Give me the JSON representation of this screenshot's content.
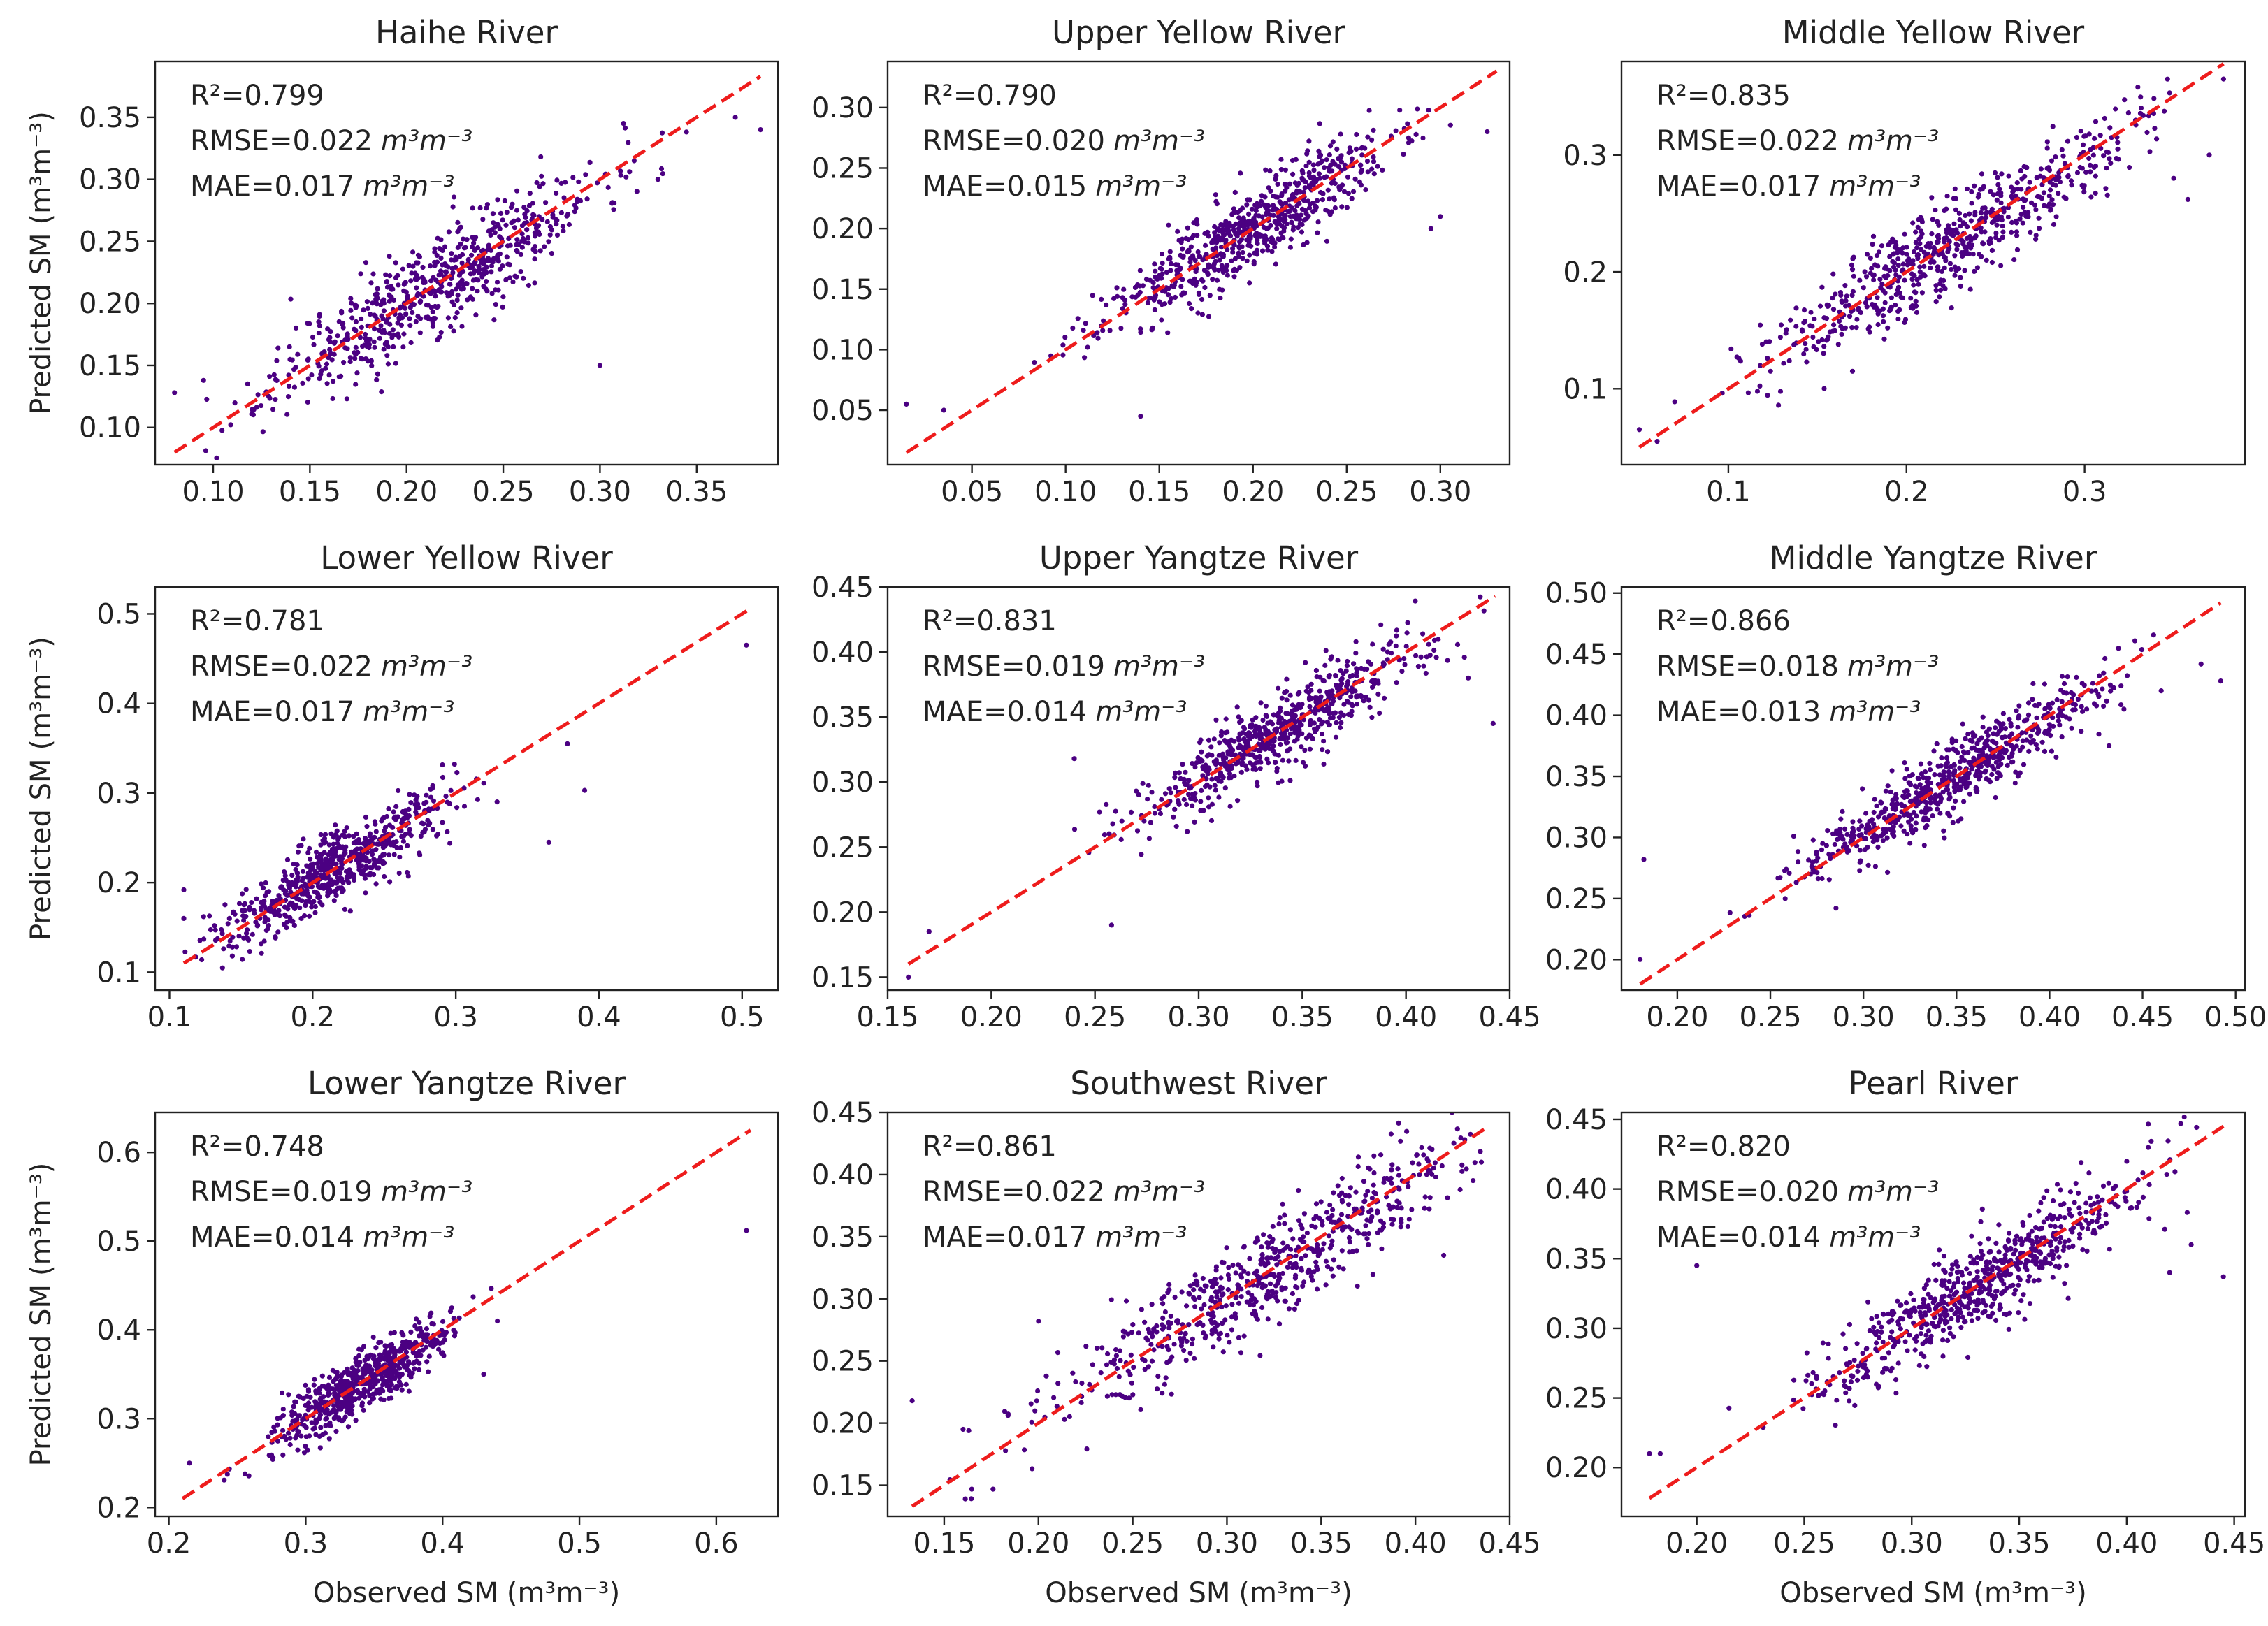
{
  "figure": {
    "ylabel": "Predicted SM",
    "xlabel": "Observed SM",
    "unit": "(m³m⁻³)",
    "stat_unit": "m³m⁻³"
  },
  "colors": {
    "points": "#4b0082",
    "line": "#ee1c1c",
    "frame": "#222222"
  },
  "chart_data": [
    {
      "type": "scatter",
      "title": "Haihe River",
      "r2": "R²=0.799",
      "rmse": "RMSE=0.022",
      "mae": "MAE=0.017",
      "xlim": [
        0.07,
        0.392
      ],
      "ylim": [
        0.07,
        0.395
      ],
      "xticks": [
        0.1,
        0.15,
        0.2,
        0.25,
        0.3,
        0.35
      ],
      "xtick_labels": [
        "0.10",
        "0.15",
        "0.20",
        "0.25",
        "0.30",
        "0.35"
      ],
      "yticks": [
        0.1,
        0.15,
        0.2,
        0.25,
        0.3,
        0.35
      ],
      "ytick_labels": [
        "0.10",
        "0.15",
        "0.20",
        "0.25",
        "0.30",
        "0.35"
      ],
      "line": [
        0.08,
        0.383
      ],
      "cluster": {
        "center": 0.215,
        "spread": 0.042,
        "scatter": 0.02,
        "n": 650,
        "seed": 11
      },
      "outliers": [
        [
          0.08,
          0.128
        ],
        [
          0.095,
          0.138
        ],
        [
          0.383,
          0.34
        ],
        [
          0.37,
          0.35
        ],
        [
          0.3,
          0.15
        ],
        [
          0.33,
          0.3
        ]
      ]
    },
    {
      "type": "scatter",
      "title": "Upper Yellow River",
      "r2": "R²=0.790",
      "rmse": "RMSE=0.020",
      "mae": "MAE=0.015",
      "xlim": [
        0.005,
        0.337
      ],
      "ylim": [
        0.005,
        0.338
      ],
      "xticks": [
        0.05,
        0.1,
        0.15,
        0.2,
        0.25,
        0.3
      ],
      "xtick_labels": [
        "0.05",
        "0.10",
        "0.15",
        "0.20",
        "0.25",
        "0.30"
      ],
      "yticks": [
        0.05,
        0.1,
        0.15,
        0.2,
        0.25,
        0.3
      ],
      "ytick_labels": [
        "0.05",
        "0.10",
        "0.15",
        "0.20",
        "0.25",
        "0.30"
      ],
      "line": [
        0.015,
        0.33
      ],
      "cluster": {
        "center": 0.195,
        "spread": 0.038,
        "scatter": 0.017,
        "n": 650,
        "seed": 23
      },
      "outliers": [
        [
          0.015,
          0.055
        ],
        [
          0.035,
          0.05
        ],
        [
          0.325,
          0.28
        ],
        [
          0.3,
          0.21
        ],
        [
          0.295,
          0.2
        ],
        [
          0.14,
          0.045
        ],
        [
          0.16,
          0.17
        ]
      ]
    },
    {
      "type": "scatter",
      "title": "Middle Yellow River",
      "r2": "R²=0.835",
      "rmse": "RMSE=0.022",
      "mae": "MAE=0.017",
      "xlim": [
        0.04,
        0.39
      ],
      "ylim": [
        0.035,
        0.38
      ],
      "xticks": [
        0.1,
        0.2,
        0.3
      ],
      "xtick_labels": [
        "0.1",
        "0.2",
        "0.3"
      ],
      "yticks": [
        0.1,
        0.2,
        0.3
      ],
      "ytick_labels": [
        "0.1",
        "0.2",
        "0.3"
      ],
      "line": [
        0.05,
        0.378
      ],
      "cluster": {
        "center": 0.225,
        "spread": 0.05,
        "scatter": 0.02,
        "n": 650,
        "seed": 37
      },
      "outliers": [
        [
          0.05,
          0.065
        ],
        [
          0.06,
          0.055
        ],
        [
          0.378,
          0.365
        ],
        [
          0.37,
          0.3
        ],
        [
          0.358,
          0.262
        ],
        [
          0.35,
          0.28
        ]
      ]
    },
    {
      "type": "scatter",
      "title": "Lower Yellow River",
      "r2": "R²=0.781",
      "rmse": "RMSE=0.022",
      "mae": "MAE=0.017",
      "xlim": [
        0.09,
        0.525
      ],
      "ylim": [
        0.08,
        0.53
      ],
      "xticks": [
        0.1,
        0.2,
        0.3,
        0.4,
        0.5
      ],
      "xtick_labels": [
        "0.1",
        "0.2",
        "0.3",
        "0.4",
        "0.5"
      ],
      "yticks": [
        0.1,
        0.2,
        0.3,
        0.4,
        0.5
      ],
      "ytick_labels": [
        "0.1",
        "0.2",
        "0.3",
        "0.4",
        "0.5"
      ],
      "line": [
        0.11,
        0.505
      ],
      "cluster": {
        "center": 0.215,
        "spread": 0.04,
        "scatter": 0.02,
        "n": 650,
        "seed": 41
      },
      "outliers": [
        [
          0.11,
          0.192
        ],
        [
          0.503,
          0.465
        ],
        [
          0.39,
          0.303
        ],
        [
          0.365,
          0.245
        ],
        [
          0.378,
          0.355
        ],
        [
          0.11,
          0.16
        ]
      ]
    },
    {
      "type": "scatter",
      "title": "Upper Yangtze River",
      "r2": "R²=0.831",
      "rmse": "RMSE=0.019",
      "mae": "MAE=0.014",
      "xlim": [
        0.15,
        0.45
      ],
      "ylim": [
        0.14,
        0.45
      ],
      "xticks": [
        0.15,
        0.2,
        0.25,
        0.3,
        0.35,
        0.4,
        0.45
      ],
      "xtick_labels": [
        "0.15",
        "0.20",
        "0.25",
        "0.30",
        "0.35",
        "0.40",
        "0.45"
      ],
      "yticks": [
        0.15,
        0.2,
        0.25,
        0.3,
        0.35,
        0.4,
        0.45
      ],
      "ytick_labels": [
        "0.15",
        "0.20",
        "0.25",
        "0.30",
        "0.35",
        "0.40",
        "0.45"
      ],
      "line": [
        0.16,
        0.443
      ],
      "cluster": {
        "center": 0.34,
        "spread": 0.035,
        "scatter": 0.015,
        "n": 650,
        "seed": 53
      },
      "outliers": [
        [
          0.16,
          0.15
        ],
        [
          0.17,
          0.185
        ],
        [
          0.442,
          0.345
        ],
        [
          0.258,
          0.19
        ],
        [
          0.24,
          0.318
        ],
        [
          0.43,
          0.38
        ]
      ]
    },
    {
      "type": "scatter",
      "title": "Middle Yangtze River",
      "r2": "R²=0.866",
      "rmse": "RMSE=0.018",
      "mae": "MAE=0.013",
      "xlim": [
        0.17,
        0.505
      ],
      "ylim": [
        0.175,
        0.505
      ],
      "xticks": [
        0.2,
        0.25,
        0.3,
        0.35,
        0.4,
        0.45,
        0.5
      ],
      "xtick_labels": [
        "0.20",
        "0.25",
        "0.30",
        "0.35",
        "0.40",
        "0.45",
        "0.50"
      ],
      "yticks": [
        0.2,
        0.25,
        0.3,
        0.35,
        0.4,
        0.45,
        0.5
      ],
      "ytick_labels": [
        "0.20",
        "0.25",
        "0.30",
        "0.35",
        "0.40",
        "0.45",
        "0.50"
      ],
      "line": [
        0.18,
        0.492
      ],
      "cluster": {
        "center": 0.345,
        "spread": 0.04,
        "scatter": 0.014,
        "n": 650,
        "seed": 67
      },
      "outliers": [
        [
          0.182,
          0.282
        ],
        [
          0.18,
          0.2
        ],
        [
          0.492,
          0.428
        ],
        [
          0.46,
          0.42
        ],
        [
          0.44,
          0.405
        ],
        [
          0.432,
          0.375
        ]
      ]
    },
    {
      "type": "scatter",
      "title": "Lower Yangtze River",
      "r2": "R²=0.748",
      "rmse": "RMSE=0.019",
      "mae": "MAE=0.014",
      "xlim": [
        0.19,
        0.645
      ],
      "ylim": [
        0.19,
        0.645
      ],
      "xticks": [
        0.2,
        0.3,
        0.4,
        0.5,
        0.6
      ],
      "xtick_labels": [
        "0.2",
        "0.3",
        "0.4",
        "0.5",
        "0.6"
      ],
      "yticks": [
        0.2,
        0.3,
        0.4,
        0.5,
        0.6
      ],
      "ytick_labels": [
        "0.2",
        "0.3",
        "0.4",
        "0.5",
        "0.6"
      ],
      "line": [
        0.21,
        0.625
      ],
      "cluster": {
        "center": 0.34,
        "spread": 0.032,
        "scatter": 0.016,
        "n": 650,
        "seed": 79
      },
      "outliers": [
        [
          0.622,
          0.512
        ],
        [
          0.215,
          0.25
        ],
        [
          0.44,
          0.41
        ],
        [
          0.43,
          0.35
        ]
      ]
    },
    {
      "type": "scatter",
      "title": "Southwest River",
      "r2": "R²=0.861",
      "rmse": "RMSE=0.022",
      "mae": "MAE=0.017",
      "xlim": [
        0.12,
        0.45
      ],
      "ylim": [
        0.125,
        0.45
      ],
      "xticks": [
        0.15,
        0.2,
        0.25,
        0.3,
        0.35,
        0.4,
        0.45
      ],
      "xtick_labels": [
        "0.15",
        "0.20",
        "0.25",
        "0.30",
        "0.35",
        "0.40",
        "0.45"
      ],
      "yticks": [
        0.15,
        0.2,
        0.25,
        0.3,
        0.35,
        0.4,
        0.45
      ],
      "ytick_labels": [
        "0.15",
        "0.20",
        "0.25",
        "0.30",
        "0.35",
        "0.40",
        "0.45"
      ],
      "line": [
        0.133,
        0.438
      ],
      "cluster": {
        "center": 0.32,
        "spread": 0.06,
        "scatter": 0.02,
        "n": 650,
        "seed": 83
      },
      "outliers": [
        [
          0.133,
          0.218
        ],
        [
          0.16,
          0.195
        ],
        [
          0.2,
          0.282
        ],
        [
          0.415,
          0.335
        ],
        [
          0.435,
          0.41
        ]
      ]
    },
    {
      "type": "scatter",
      "title": "Pearl River",
      "r2": "R²=0.820",
      "rmse": "RMSE=0.020",
      "mae": "MAE=0.014",
      "xlim": [
        0.165,
        0.455
      ],
      "ylim": [
        0.165,
        0.455
      ],
      "xticks": [
        0.2,
        0.25,
        0.3,
        0.35,
        0.4,
        0.45
      ],
      "xtick_labels": [
        "0.20",
        "0.25",
        "0.30",
        "0.35",
        "0.40",
        "0.45"
      ],
      "yticks": [
        0.2,
        0.25,
        0.3,
        0.35,
        0.4,
        0.45
      ],
      "ytick_labels": [
        "0.20",
        "0.25",
        "0.30",
        "0.35",
        "0.40",
        "0.45"
      ],
      "line": [
        0.178,
        0.445
      ],
      "cluster": {
        "center": 0.33,
        "spread": 0.04,
        "scatter": 0.016,
        "n": 650,
        "seed": 97
      },
      "outliers": [
        [
          0.178,
          0.21
        ],
        [
          0.183,
          0.21
        ],
        [
          0.2,
          0.345
        ],
        [
          0.445,
          0.337
        ],
        [
          0.43,
          0.36
        ],
        [
          0.42,
          0.34
        ]
      ]
    }
  ]
}
